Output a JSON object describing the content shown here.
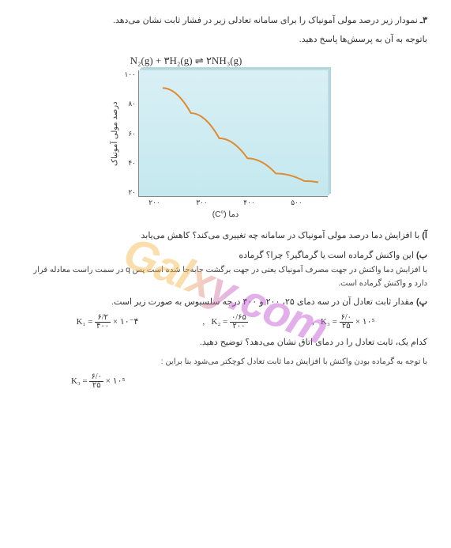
{
  "question": {
    "number": "۳ـ",
    "text_line1": "نمودار زیر درصد مولی آمونیاک را برای سامانه تعادلی زیر در فشار ثابت نشان می‌دهد.",
    "text_line2": "باتوجه به آن به پرسش‌ها پاسخ دهید."
  },
  "equation": "N₂(g) + ۳H₂(g)  ⇌  ۲NH₃(g)",
  "chart": {
    "type": "line",
    "ylabel": "درصد مولی آمونیاک",
    "xlabel": "دما (°C)",
    "y_ticks": [
      "۱۰۰",
      "۸۰",
      "۶۰",
      "۴۰",
      "۲۰"
    ],
    "x_ticks": [
      "۲۰۰",
      "۳۰۰",
      "۴۰۰",
      "۵۰۰"
    ],
    "ylim": [
      0,
      100
    ],
    "xlim": [
      150,
      550
    ],
    "background_color": "#d0edf3",
    "curve_color": "#e08a2e",
    "curve_width": 2,
    "points": [
      {
        "x": 200,
        "y": 86
      },
      {
        "x": 260,
        "y": 66
      },
      {
        "x": 320,
        "y": 46
      },
      {
        "x": 380,
        "y": 30
      },
      {
        "x": 440,
        "y": 18
      },
      {
        "x": 500,
        "y": 12
      },
      {
        "x": 530,
        "y": 11
      }
    ]
  },
  "answers": {
    "a": {
      "label": "آ)",
      "text": "با افزایش دما درصد مولی آمونیاک در سامانه چه تغییری می‌کند؟ کاهش می‌یابد"
    },
    "b": {
      "label": "ب)",
      "text": "این واکنش گرماده است یا گرماگیر؟ چرا؟ گرماده",
      "explain": "با افزایش دما واکنش در جهت مصرف آمونیاک یعنی در جهت برگشت جابه‌جا شده است پس q در سمت راست معادله قرار دارد و واکنش گرماده است."
    },
    "p": {
      "label": "پ)",
      "text": "مقدار ثابت تعادل آن در سه دمای ۲۵، ۲۰۰ و ۴۰۰ درجه سلسیوس به صورت زیر است."
    },
    "k_values": [
      {
        "label": "K₁ =",
        "num": "۶/۲",
        "den": "۴۰۰",
        "exp": "× ۱۰⁻۴"
      },
      {
        "label": "K₂ =",
        "num": "۰/۶۵",
        "den": "۲۰۰",
        "exp": ""
      },
      {
        "label": "K₃ =",
        "num": "۶/۰",
        "den": "۲۵",
        "exp": "× ۱۰⁵"
      }
    ],
    "final_q": "کدام یک، ثابت تعادل را در دمای اتاق نشان می‌دهد؟ توضیح دهید.",
    "final_a": "با توجه به گرماده بودن واکنش با افزایش دما ثابت تعادل کوچکتر می‌شود بنا براین :",
    "final_k": {
      "label": "K₃ =",
      "num": "۶/۰",
      "den": "۲۵",
      "exp": "× ۱۰⁵"
    }
  },
  "watermark": "Galxy.com"
}
